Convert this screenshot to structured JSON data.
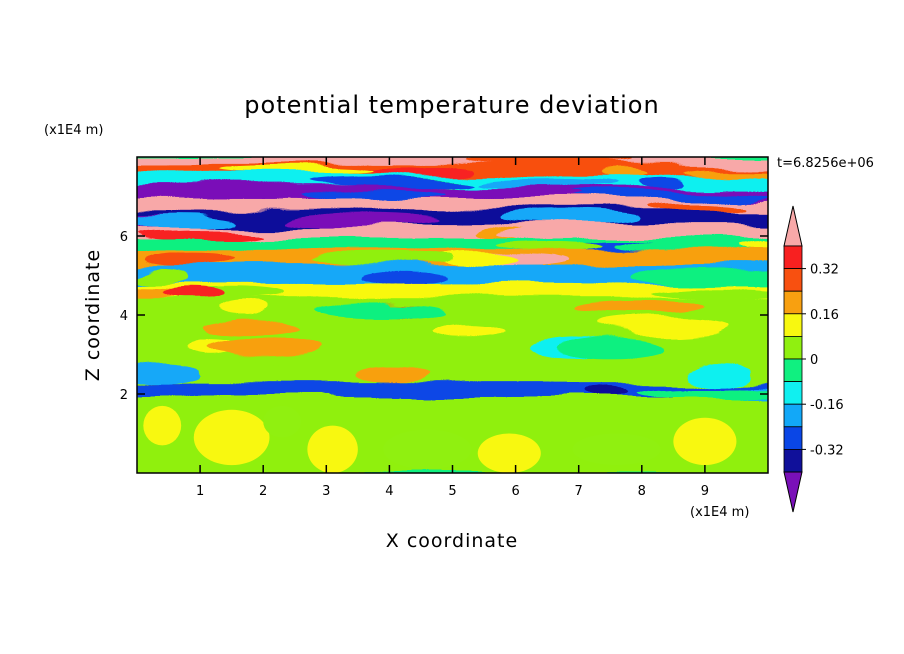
{
  "chart_data": {
    "type": "heatmap",
    "title": "potential temperature deviation",
    "xlabel": "X coordinate",
    "ylabel": "Z coordinate",
    "x_unit": "(x1E4 m)",
    "z_unit": "(x1E4 m)",
    "time_label": "t=6.8256e+06",
    "xlim": [
      0,
      10
    ],
    "ylim": [
      0,
      8
    ],
    "x_ticks": [
      "1",
      "2",
      "3",
      "4",
      "5",
      "6",
      "7",
      "8",
      "9"
    ],
    "y_ticks": [
      "2",
      "4",
      "6"
    ],
    "colorbar": {
      "levels": [
        -0.4,
        -0.32,
        -0.24,
        -0.16,
        -0.08,
        0,
        0.08,
        0.16,
        0.24,
        0.32,
        0.4
      ],
      "labels": [
        "0.32",
        "0.16",
        "0",
        "-0.16",
        "-0.32"
      ],
      "label_values": [
        0.32,
        0.16,
        0,
        -0.16,
        -0.32
      ],
      "colors": [
        "#7a10b8",
        "#10109a",
        "#0a46e6",
        "#12a8f8",
        "#10f0f0",
        "#10f080",
        "#90f010",
        "#f8f810",
        "#f8a010",
        "#f85010",
        "#f82020",
        "#f8a8a8"
      ],
      "extend": "both"
    },
    "bands": [
      {
        "z": [
          7.75,
          8.0
        ],
        "dominant": 0.4
      },
      {
        "z": [
          7.5,
          7.75
        ],
        "dominant": 0.28
      },
      {
        "z": [
          7.2,
          7.5
        ],
        "dominant": -0.1
      },
      {
        "z": [
          6.9,
          7.2
        ],
        "dominant": -0.42
      },
      {
        "z": [
          6.6,
          6.9
        ],
        "dominant": 0.42
      },
      {
        "z": [
          6.2,
          6.6
        ],
        "dominant": -0.38
      },
      {
        "z": [
          5.9,
          6.2
        ],
        "dominant": 0.42
      },
      {
        "z": [
          5.6,
          5.9
        ],
        "dominant": -0.05
      },
      {
        "z": [
          5.2,
          5.6
        ],
        "dominant": 0.2
      },
      {
        "z": [
          4.8,
          5.2
        ],
        "dominant": -0.2
      },
      {
        "z": [
          4.4,
          4.8
        ],
        "dominant": 0.12
      },
      {
        "z": [
          3.9,
          4.4
        ],
        "dominant": 0.05
      },
      {
        "z": [
          3.4,
          3.9
        ],
        "dominant": 0.0
      },
      {
        "z": [
          2.8,
          3.4
        ],
        "dominant": 0.06
      },
      {
        "z": [
          2.3,
          2.8
        ],
        "dominant": 0.02
      },
      {
        "z": [
          1.9,
          2.3
        ],
        "dominant": -0.3
      },
      {
        "z": [
          0.0,
          1.9
        ],
        "dominant": 0.03
      }
    ]
  }
}
